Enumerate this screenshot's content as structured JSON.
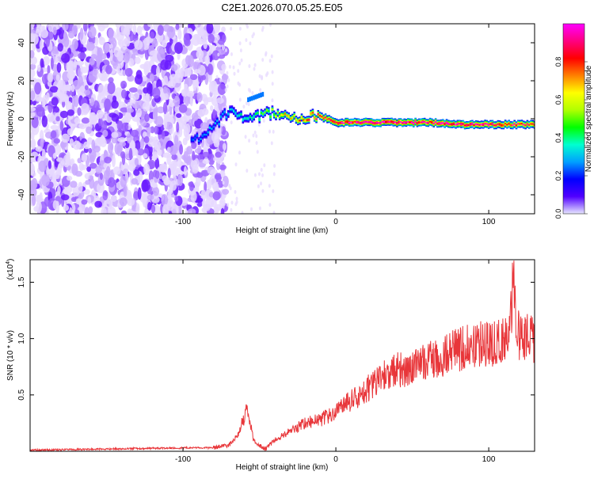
{
  "page_title": "C2E1.2026.070.05.25.E05",
  "chart_data": [
    {
      "type": "heatmap",
      "id": "spectrogram",
      "xlabel": "Height of straight line (km)",
      "ylabel": "Frequency (Hz)",
      "xlim": [
        -200,
        130
      ],
      "ylim": [
        -50,
        50
      ],
      "xticks": [
        {
          "value": -100,
          "label": "-100"
        },
        {
          "value": 0,
          "label": "0"
        },
        {
          "value": 100,
          "label": "100"
        }
      ],
      "yticks": [
        {
          "value": -40,
          "label": "-40"
        },
        {
          "value": -20,
          "label": "-20"
        },
        {
          "value": 0,
          "label": "0"
        },
        {
          "value": 20,
          "label": "20"
        },
        {
          "value": 40,
          "label": "40"
        }
      ],
      "ridge": [
        {
          "x": -95,
          "f": -9,
          "a": 0.25
        },
        {
          "x": -88,
          "f": -10,
          "a": 0.28
        },
        {
          "x": -82,
          "f": -6,
          "a": 0.3
        },
        {
          "x": -76,
          "f": 0,
          "a": 0.32
        },
        {
          "x": -70,
          "f": 4,
          "a": 0.35
        },
        {
          "x": -64,
          "f": 0,
          "a": 0.38
        },
        {
          "x": -58,
          "f": 2,
          "a": 0.4
        },
        {
          "x": -52,
          "f": 1,
          "a": 0.45
        },
        {
          "x": -46,
          "f": 3,
          "a": 0.55
        },
        {
          "x": -40,
          "f": 3,
          "a": 0.6
        },
        {
          "x": -34,
          "f": 2,
          "a": 0.7
        },
        {
          "x": -28,
          "f": 1,
          "a": 0.75
        },
        {
          "x": -22,
          "f": 0,
          "a": 0.8
        },
        {
          "x": -16,
          "f": 2,
          "a": 0.85
        },
        {
          "x": -10,
          "f": 1,
          "a": 0.9
        },
        {
          "x": 0,
          "f": -2,
          "a": 0.95
        },
        {
          "x": 20,
          "f": -2,
          "a": 1.0
        },
        {
          "x": 40,
          "f": -2,
          "a": 1.0
        },
        {
          "x": 60,
          "f": -2,
          "a": 1.0
        },
        {
          "x": 80,
          "f": -3,
          "a": 1.0
        },
        {
          "x": 100,
          "f": -3,
          "a": 0.95
        },
        {
          "x": 115,
          "f": -3,
          "a": 0.9
        },
        {
          "x": 130,
          "f": -3,
          "a": 0.9
        }
      ]
    },
    {
      "type": "line",
      "id": "snr",
      "xlabel": "Height of straight line (km)",
      "ylabel": "SNR (10 * v/v)",
      "scale_label": "(x10",
      "scale_exp": "4",
      "ylabel_suffix": ")",
      "xlim": [
        -200,
        130
      ],
      "ylim": [
        0,
        1.7
      ],
      "xticks": [
        {
          "value": -100,
          "label": "-100"
        },
        {
          "value": 0,
          "label": "0"
        },
        {
          "value": 100,
          "label": "100"
        }
      ],
      "yticks": [
        {
          "value": 0.5,
          "label": "0.5"
        },
        {
          "value": 1.0,
          "label": "1.0"
        },
        {
          "value": 1.5,
          "label": "1.5"
        }
      ],
      "series": [
        {
          "name": "SNR",
          "color": "#e8363a",
          "x": [
            -200,
            -150,
            -100,
            -80,
            -70,
            -64,
            -60,
            -58,
            -56,
            -54,
            -50,
            -46,
            -40,
            -30,
            -20,
            -10,
            0,
            10,
            20,
            30,
            40,
            50,
            60,
            70,
            80,
            90,
            100,
            110,
            113,
            116,
            120,
            130
          ],
          "y": [
            0.01,
            0.02,
            0.03,
            0.03,
            0.05,
            0.15,
            0.3,
            0.4,
            0.25,
            0.1,
            0.05,
            0.02,
            0.1,
            0.18,
            0.25,
            0.28,
            0.35,
            0.45,
            0.55,
            0.65,
            0.72,
            0.74,
            0.8,
            0.85,
            0.9,
            0.95,
            0.95,
            1.0,
            1.05,
            1.45,
            1.0,
            1.0
          ]
        }
      ]
    }
  ],
  "colorbar": {
    "label": "Normalized spectral amplitude",
    "ticks": [
      {
        "value": 0.0,
        "label": "0.0"
      },
      {
        "value": 0.2,
        "label": "0.2"
      },
      {
        "value": 0.4,
        "label": "0.4"
      },
      {
        "value": 0.6,
        "label": "0.6"
      },
      {
        "value": 0.8,
        "label": "0.8"
      }
    ],
    "colors": [
      "#e8e8ff",
      "#5000ff",
      "#0000ff",
      "#00a0ff",
      "#00ffd0",
      "#00ff00",
      "#b0ff00",
      "#ffff00",
      "#ff8000",
      "#ff0000",
      "#ff0080",
      "#ff00ff"
    ]
  }
}
